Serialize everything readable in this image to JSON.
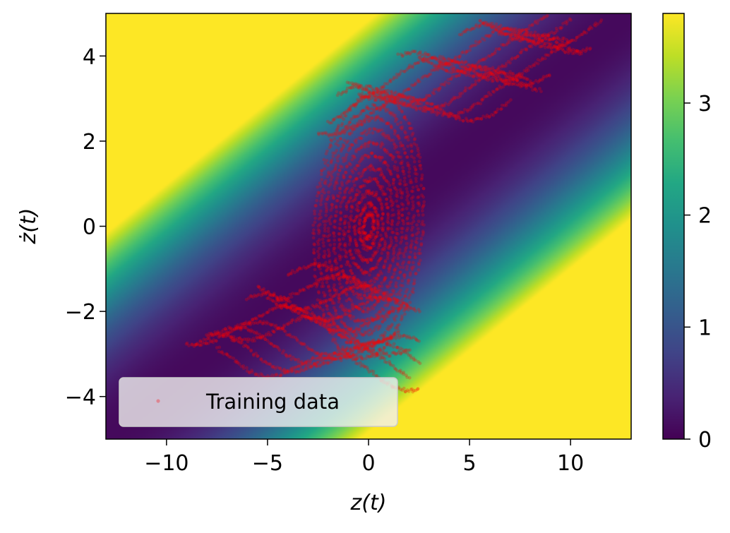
{
  "chart_data": {
    "type": "heatmap",
    "title": "",
    "xlabel": "z(t)",
    "ylabel": "ż(t)",
    "xlim": [
      -13,
      13
    ],
    "ylim": [
      -5,
      5
    ],
    "x_ticks": [
      -10,
      -5,
      0,
      5,
      10
    ],
    "x_tick_labels": [
      "−10",
      "−5",
      "0",
      "5",
      "10"
    ],
    "y_ticks": [
      -4,
      -2,
      0,
      2,
      4
    ],
    "y_tick_labels": [
      "−4",
      "−2",
      "0",
      "2",
      "4"
    ],
    "grid": false,
    "colormap": "viridis",
    "colorbar": {
      "range": [
        0,
        3.8
      ],
      "ticks": [
        0,
        1,
        2,
        3
      ],
      "tick_labels": [
        "0",
        "1",
        "2",
        "3"
      ]
    },
    "heatmap_field": {
      "description_free": true,
      "valley_slope": 0.38,
      "value_scale": 0.118,
      "value_offset": 0.04
    },
    "series": [
      {
        "name": "Training data",
        "type": "scatter",
        "color": "#ff0000",
        "opacity": 0.25,
        "groups": [
          {
            "kind": "orbit",
            "center": [
              0,
              0
            ],
            "radii_x": [
              0.25,
              0.45,
              0.7,
              0.95,
              1.2,
              1.45,
              1.7,
              1.95,
              2.2,
              2.45,
              2.7
            ],
            "radii_y_ratio": 1.15
          },
          {
            "kind": "upper_wave",
            "x_start": [
              -2.5,
              -2.0,
              -1.5,
              -1.0,
              -0.5,
              0.5,
              1.5,
              2.5,
              3.5,
              4.5,
              5.5,
              6.5
            ],
            "x_end": [
              7.0,
              7.5,
              8.0,
              8.5,
              9.0,
              9.5,
              10.0,
              10.5,
              11.0,
              11.5,
              10.0,
              9.5
            ],
            "y_base": [
              2.7,
              2.9,
              3.1,
              3.3,
              3.5,
              3.7,
              3.9,
              4.1,
              4.3,
              4.5,
              4.7,
              4.9
            ]
          },
          {
            "kind": "lower_wave",
            "x_start": [
              -9.0,
              -8.5,
              -8.0,
              -7.5,
              -7.0,
              -6.5,
              -6.0,
              -5.5,
              -5.0,
              -4.5,
              -4.0
            ],
            "x_end": [
              2.5,
              2.5,
              2.0,
              2.5,
              2.0,
              1.5,
              2.5,
              2.0,
              1.5,
              1.0,
              0.5
            ],
            "y_base": [
              -2.7,
              -2.9,
              -3.1,
              -3.3,
              -2.5,
              -2.3,
              -2.1,
              -1.9,
              -1.7,
              -1.5,
              -1.3
            ]
          }
        ]
      }
    ],
    "legend": {
      "placement": "lower-left",
      "entries": [
        {
          "label": "Training data",
          "marker": "dot",
          "color": "#ff0000"
        }
      ]
    }
  }
}
